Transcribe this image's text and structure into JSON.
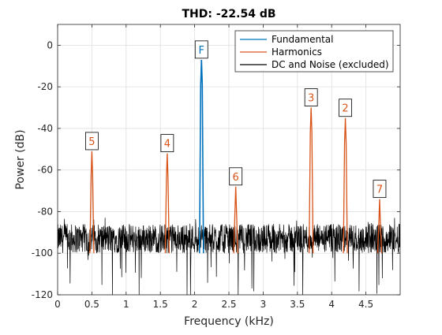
{
  "chart_data": {
    "type": "line",
    "title": "THD: -22.54 dB",
    "xlabel": "Frequency (kHz)",
    "ylabel": "Power (dB)",
    "xlim": [
      0,
      5
    ],
    "ylim": [
      -120,
      10
    ],
    "xticks": [
      0,
      0.5,
      1,
      1.5,
      2,
      2.5,
      3,
      3.5,
      4,
      4.5
    ],
    "xtick_labels": [
      "0",
      "0.5",
      "1",
      "1.5",
      "2",
      "2.5",
      "3",
      "3.5",
      "4",
      "4.5"
    ],
    "yticks": [
      -120,
      -100,
      -80,
      -60,
      -40,
      -20,
      0
    ],
    "ytick_labels": [
      "-120",
      "-100",
      "-80",
      "-60",
      "-40",
      "-20",
      "0"
    ],
    "grid": true,
    "legend_position": "top-right",
    "colors": {
      "fundamental": "#0072BD",
      "harmonics": "#D95319",
      "noise": "#000000"
    },
    "series": [
      {
        "name": "Fundamental",
        "color": "#0072BD",
        "peaks": [
          {
            "label": "F",
            "x": 2.1,
            "y": -7
          }
        ]
      },
      {
        "name": "Harmonics",
        "color": "#D95319",
        "peaks": [
          {
            "label": "2",
            "x": 4.2,
            "y": -35
          },
          {
            "label": "3",
            "x": 3.7,
            "y": -30
          },
          {
            "label": "4",
            "x": 1.6,
            "y": -52
          },
          {
            "label": "5",
            "x": 0.5,
            "y": -51
          },
          {
            "label": "6",
            "x": 2.6,
            "y": -68
          },
          {
            "label": "7",
            "x": 4.7,
            "y": -74
          }
        ]
      },
      {
        "name": "DC and Noise (excluded)",
        "color": "#000000",
        "noise_floor": {
          "mean": -93,
          "min": -120,
          "max": -83
        }
      }
    ]
  }
}
